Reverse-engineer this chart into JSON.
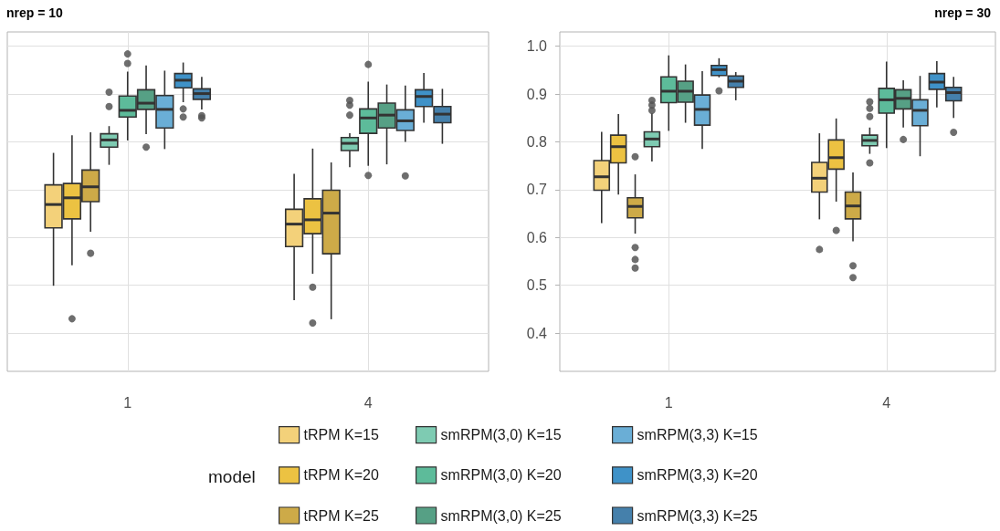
{
  "chart_data": [
    {
      "type": "box",
      "title": "nrep = 10",
      "categories": [
        "1",
        "4"
      ],
      "ylim": [
        0.32,
        1.03
      ],
      "yticks": [
        0.4,
        0.5,
        0.6,
        0.7,
        0.8,
        0.9,
        1
      ],
      "grid": true,
      "tick_labels": "x",
      "series": [
        {
          "color": "#f3d17a",
          "boxes": [
            {
              "low": 0.499,
              "q1": 0.62,
              "median": 0.669,
              "q3": 0.71,
              "high": 0.777
            },
            {
              "low": 0.469,
              "q1": 0.581,
              "median": 0.628,
              "q3": 0.659,
              "high": 0.733
            }
          ]
        },
        {
          "color": "#ecc242",
          "boxes": [
            {
              "low": 0.542,
              "q1": 0.639,
              "median": 0.683,
              "q3": 0.713,
              "high": 0.814,
              "outliers": [
                0.43
              ]
            },
            {
              "low": 0.524,
              "q1": 0.608,
              "median": 0.637,
              "q3": 0.681,
              "high": 0.786,
              "outliers": [
                0.496,
                0.421
              ]
            }
          ]
        },
        {
          "color": "#cdaa48",
          "boxes": [
            {
              "low": 0.612,
              "q1": 0.675,
              "median": 0.706,
              "q3": 0.741,
              "high": 0.82,
              "outliers": [
                0.567
              ]
            },
            {
              "low": 0.429,
              "q1": 0.566,
              "median": 0.651,
              "q3": 0.699,
              "high": 0.757
            }
          ]
        },
        {
          "color": "#7ecbb2",
          "boxes": [
            {
              "low": 0.752,
              "q1": 0.789,
              "median": 0.804,
              "q3": 0.817,
              "high": 0.833,
              "outliers": [
                0.904,
                0.874
              ]
            },
            {
              "low": 0.747,
              "q1": 0.782,
              "median": 0.797,
              "q3": 0.809,
              "high": 0.818,
              "outliers": [
                0.887,
                0.877,
                0.856
              ]
            }
          ]
        },
        {
          "color": "#5dbb9a",
          "boxes": [
            {
              "low": 0.803,
              "q1": 0.852,
              "median": 0.866,
              "q3": 0.896,
              "high": 0.947,
              "outliers": [
                0.984,
                0.964
              ]
            },
            {
              "low": 0.75,
              "q1": 0.818,
              "median": 0.85,
              "q3": 0.869,
              "high": 0.926,
              "outliers": [
                0.962,
                0.73
              ]
            }
          ]
        },
        {
          "color": "#56a085",
          "boxes": [
            {
              "low": 0.816,
              "q1": 0.868,
              "median": 0.881,
              "q3": 0.909,
              "high": 0.96,
              "outliers": [
                0.789
              ]
            },
            {
              "low": 0.753,
              "q1": 0.829,
              "median": 0.856,
              "q3": 0.881,
              "high": 0.92
            }
          ]
        },
        {
          "color": "#6aaed6",
          "boxes": [
            {
              "low": 0.785,
              "q1": 0.829,
              "median": 0.868,
              "q3": 0.897,
              "high": 0.949
            },
            {
              "low": 0.8,
              "q1": 0.824,
              "median": 0.844,
              "q3": 0.867,
              "high": 0.918,
              "outliers": [
                0.729
              ]
            }
          ]
        },
        {
          "color": "#3f92c8",
          "boxes": [
            {
              "low": 0.883,
              "q1": 0.913,
              "median": 0.929,
              "q3": 0.943,
              "high": 0.966,
              "outliers": [
                0.869,
                0.852
              ]
            },
            {
              "low": 0.84,
              "q1": 0.874,
              "median": 0.895,
              "q3": 0.909,
              "high": 0.944
            }
          ]
        },
        {
          "color": "#4580ab",
          "boxes": [
            {
              "low": 0.868,
              "q1": 0.889,
              "median": 0.901,
              "q3": 0.911,
              "high": 0.936,
              "outliers": [
                0.855,
                0.85
              ]
            },
            {
              "low": 0.796,
              "q1": 0.84,
              "median": 0.858,
              "q3": 0.874,
              "high": 0.911
            }
          ]
        }
      ]
    },
    {
      "type": "box",
      "title": "nrep = 30",
      "legend_title": "model",
      "legend": "bottom",
      "categories": [
        "1",
        "4"
      ],
      "ylim": [
        0.32,
        1.03
      ],
      "yticks": [
        0.4,
        0.5,
        0.6,
        0.7,
        0.8,
        0.9,
        {
          "value": 1,
          "label": "1.0"
        }
      ],
      "grid": true,
      "series": [
        {
          "name": "tRPM K=15",
          "color": "#f3d17a",
          "boxes": [
            {
              "low": 0.63,
              "q1": 0.699,
              "median": 0.727,
              "q3": 0.761,
              "high": 0.821
            },
            {
              "low": 0.638,
              "q1": 0.695,
              "median": 0.724,
              "q3": 0.757,
              "high": 0.818,
              "outliers": [
                0.575
              ]
            }
          ]
        },
        {
          "name": "tRPM K=20",
          "color": "#ecc242",
          "boxes": [
            {
              "low": 0.69,
              "q1": 0.756,
              "median": 0.79,
              "q3": 0.814,
              "high": 0.858
            },
            {
              "low": 0.675,
              "q1": 0.743,
              "median": 0.767,
              "q3": 0.804,
              "high": 0.849,
              "outliers": [
                0.615
              ]
            }
          ]
        },
        {
          "name": "tRPM K=25",
          "color": "#cdaa48",
          "boxes": [
            {
              "low": 0.608,
              "q1": 0.641,
              "median": 0.665,
              "q3": 0.683,
              "high": 0.732,
              "outliers": [
                0.769,
                0.579,
                0.554,
                0.536
              ]
            },
            {
              "low": 0.592,
              "q1": 0.639,
              "median": 0.666,
              "q3": 0.695,
              "high": 0.736,
              "outliers": [
                0.541,
                0.516
              ]
            }
          ]
        },
        {
          "name": "smRPM(3,0) K=15",
          "color": "#7ecbb2",
          "boxes": [
            {
              "low": 0.759,
              "q1": 0.79,
              "median": 0.806,
              "q3": 0.821,
              "high": 0.86,
              "outliers": [
                0.887,
                0.877,
                0.866
              ]
            },
            {
              "low": 0.775,
              "q1": 0.792,
              "median": 0.803,
              "q3": 0.814,
              "high": 0.83,
              "outliers": [
                0.884,
                0.87,
                0.853,
                0.756
              ]
            }
          ]
        },
        {
          "name": "smRPM(3,0) K=20",
          "color": "#5dbb9a",
          "boxes": [
            {
              "low": 0.823,
              "q1": 0.882,
              "median": 0.906,
              "q3": 0.936,
              "high": 0.981
            },
            {
              "low": 0.787,
              "q1": 0.86,
              "median": 0.888,
              "q3": 0.912,
              "high": 0.968
            }
          ]
        },
        {
          "name": "smRPM(3,0) K=25",
          "color": "#56a085",
          "boxes": [
            {
              "low": 0.84,
              "q1": 0.883,
              "median": 0.906,
              "q3": 0.927,
              "high": 0.962
            },
            {
              "low": 0.83,
              "q1": 0.869,
              "median": 0.891,
              "q3": 0.909,
              "high": 0.929,
              "outliers": [
                0.805
              ]
            }
          ]
        },
        {
          "name": "smRPM(3,3) K=15",
          "color": "#6aaed6",
          "boxes": [
            {
              "low": 0.785,
              "q1": 0.835,
              "median": 0.868,
              "q3": 0.898,
              "high": 0.948
            },
            {
              "low": 0.77,
              "q1": 0.834,
              "median": 0.866,
              "q3": 0.888,
              "high": 0.938
            }
          ]
        },
        {
          "name": "smRPM(3,3) K=20",
          "color": "#3f92c8",
          "boxes": [
            {
              "low": 0.935,
              "q1": 0.939,
              "median": 0.951,
              "q3": 0.96,
              "high": 0.975,
              "outliers": [
                0.907
              ]
            },
            {
              "low": 0.872,
              "q1": 0.91,
              "median": 0.925,
              "q3": 0.943,
              "high": 0.969
            }
          ]
        },
        {
          "name": "smRPM(3,3) K=25",
          "color": "#4580ab",
          "boxes": [
            {
              "low": 0.887,
              "q1": 0.914,
              "median": 0.927,
              "q3": 0.938,
              "high": 0.946
            },
            {
              "low": 0.85,
              "q1": 0.886,
              "median": 0.903,
              "q3": 0.914,
              "high": 0.936,
              "outliers": [
                0.82
              ]
            }
          ]
        }
      ]
    }
  ]
}
